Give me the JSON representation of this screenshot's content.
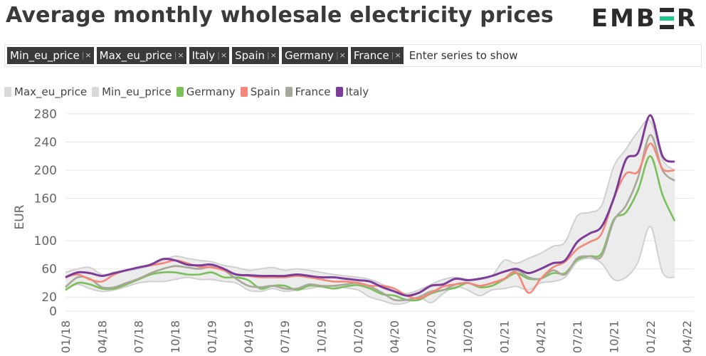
{
  "header": {
    "title": "Average monthly wholesale electricity prices",
    "logo": "EMBER"
  },
  "selector": {
    "chips": [
      "Min_eu_price",
      "Max_eu_price",
      "Italy",
      "Spain",
      "Germany",
      "France"
    ],
    "close_glyph": "×",
    "placeholder": "Enter series to show"
  },
  "legend": [
    {
      "label": "Max_eu_price",
      "color": "#d9d9d9"
    },
    {
      "label": "Min_eu_price",
      "color": "#d9d9d9"
    },
    {
      "label": "Germany",
      "color": "#7ac05a"
    },
    {
      "label": "Spain",
      "color": "#f4877a"
    },
    {
      "label": "France",
      "color": "#a8a89a"
    },
    {
      "label": "Italy",
      "color": "#7d3c98"
    }
  ],
  "chart_data": {
    "type": "line",
    "ylabel": "EUR",
    "xlabel": "",
    "ylim": [
      0,
      290
    ],
    "yticks": [
      0,
      20,
      60,
      100,
      160,
      200,
      240,
      280
    ],
    "grid": true,
    "legend_position": "top-left",
    "x": [
      "01/18",
      "02/18",
      "03/18",
      "04/18",
      "05/18",
      "06/18",
      "07/18",
      "08/18",
      "09/18",
      "10/18",
      "11/18",
      "12/18",
      "01/19",
      "02/19",
      "03/19",
      "04/19",
      "05/19",
      "06/19",
      "07/19",
      "08/19",
      "09/19",
      "10/19",
      "11/19",
      "12/19",
      "01/20",
      "02/20",
      "03/20",
      "04/20",
      "05/20",
      "06/20",
      "07/20",
      "08/20",
      "09/20",
      "10/20",
      "11/20",
      "12/20",
      "01/21",
      "02/21",
      "03/21",
      "04/21",
      "05/21",
      "06/21",
      "07/21",
      "08/21",
      "09/21",
      "10/21",
      "11/21",
      "12/21",
      "01/22",
      "02/22",
      "03/22"
    ],
    "xtick_labels": [
      "01/18",
      "04/18",
      "07/18",
      "10/18",
      "01/19",
      "04/19",
      "07/19",
      "10/19",
      "01/20",
      "04/20",
      "07/20",
      "10/20",
      "01/21",
      "04/21",
      "07/21",
      "10/21",
      "01/22",
      "04/22"
    ],
    "series": [
      {
        "name": "Max_eu_price",
        "color": "#d9d9d9",
        "values": [
          55,
          60,
          62,
          52,
          55,
          58,
          60,
          65,
          72,
          78,
          75,
          72,
          70,
          65,
          62,
          58,
          60,
          62,
          58,
          60,
          58,
          55,
          52,
          50,
          48,
          45,
          38,
          28,
          25,
          30,
          38,
          45,
          48,
          45,
          45,
          50,
          72,
          68,
          75,
          82,
          92,
          98,
          135,
          140,
          150,
          205,
          230,
          255,
          270,
          215,
          200
        ]
      },
      {
        "name": "Min_eu_price",
        "color": "#d9d9d9",
        "values": [
          30,
          38,
          32,
          28,
          30,
          35,
          40,
          42,
          42,
          45,
          48,
          45,
          45,
          42,
          40,
          30,
          28,
          32,
          28,
          30,
          32,
          35,
          35,
          33,
          30,
          20,
          15,
          10,
          12,
          20,
          12,
          25,
          35,
          30,
          22,
          30,
          32,
          35,
          30,
          40,
          42,
          48,
          70,
          75,
          68,
          45,
          48,
          70,
          120,
          55,
          48
        ]
      },
      {
        "name": "Germany",
        "color": "#7ac05a",
        "values": [
          30,
          40,
          38,
          32,
          32,
          38,
          45,
          52,
          55,
          55,
          52,
          52,
          55,
          48,
          48,
          44,
          32,
          36,
          36,
          30,
          36,
          35,
          32,
          35,
          37,
          32,
          24,
          22,
          16,
          16,
          25,
          30,
          33,
          40,
          34,
          36,
          45,
          54,
          46,
          46,
          54,
          54,
          73,
          78,
          82,
          130,
          140,
          172,
          220,
          165,
          128
        ]
      },
      {
        "name": "Spain",
        "color": "#f4877a",
        "values": [
          48,
          52,
          45,
          42,
          52,
          58,
          62,
          65,
          68,
          72,
          68,
          63,
          62,
          58,
          52,
          50,
          48,
          48,
          48,
          50,
          48,
          45,
          42,
          42,
          40,
          36,
          36,
          32,
          22,
          18,
          26,
          35,
          38,
          40,
          36,
          40,
          46,
          55,
          26,
          46,
          62,
          70,
          88,
          98,
          110,
          160,
          195,
          198,
          238,
          202,
          200
        ]
      },
      {
        "name": "France",
        "color": "#a8a89a",
        "values": [
          34,
          48,
          46,
          34,
          34,
          40,
          46,
          54,
          60,
          64,
          62,
          60,
          63,
          58,
          46,
          36,
          34,
          36,
          32,
          32,
          38,
          36,
          36,
          38,
          40,
          35,
          26,
          16,
          16,
          20,
          28,
          30,
          38,
          40,
          36,
          40,
          46,
          58,
          48,
          46,
          58,
          52,
          75,
          78,
          78,
          128,
          150,
          190,
          250,
          200,
          185
        ]
      },
      {
        "name": "Italy",
        "color": "#7d3c98",
        "values": [
          48,
          55,
          54,
          50,
          54,
          58,
          62,
          66,
          74,
          72,
          66,
          65,
          66,
          60,
          52,
          51,
          50,
          50,
          50,
          52,
          50,
          48,
          48,
          46,
          44,
          42,
          34,
          28,
          22,
          26,
          36,
          38,
          46,
          44,
          46,
          50,
          56,
          60,
          54,
          60,
          68,
          72,
          98,
          110,
          120,
          160,
          215,
          225,
          278,
          220,
          212
        ]
      }
    ]
  }
}
